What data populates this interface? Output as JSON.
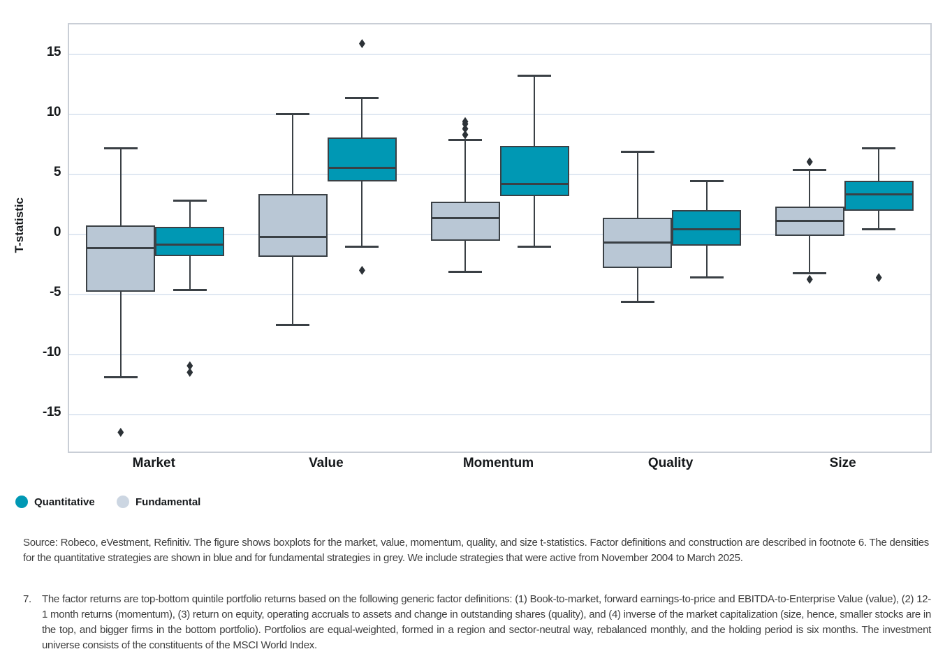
{
  "chart_data": {
    "type": "boxplot",
    "title": "",
    "ylabel": "T-statistic",
    "xlabel": "",
    "yticks": [
      15,
      10,
      5,
      0,
      -5,
      -10,
      -15
    ],
    "ylim": [
      -18.1,
      17.5
    ],
    "grid": "horizontal",
    "legend_position": "bottom-left",
    "categories": [
      "Market",
      "Value",
      "Momentum",
      "Quality",
      "Size"
    ],
    "legend": [
      {
        "name": "Quantitative",
        "color": "#0098b4"
      },
      {
        "name": "Fundamental",
        "color": "#ccd6e2"
      }
    ],
    "series": [
      {
        "name": "Fundamental",
        "color": "#b9c7d5",
        "boxes": [
          {
            "category": "Market",
            "whisker_low": -11.9,
            "q1": -4.8,
            "median": -1.15,
            "q3": 0.75,
            "whisker_high": 7.2,
            "outliers": [
              -16.5
            ]
          },
          {
            "category": "Value",
            "whisker_low": -7.55,
            "q1": -1.85,
            "median": -0.2,
            "q3": 3.35,
            "whisker_high": 10.05,
            "outliers": []
          },
          {
            "category": "Momentum",
            "whisker_low": -3.1,
            "q1": -0.55,
            "median": 1.35,
            "q3": 2.7,
            "whisker_high": 7.9,
            "outliers": [
              8.3,
              8.8,
              9.2,
              9.4
            ]
          },
          {
            "category": "Quality",
            "whisker_low": -5.65,
            "q1": -2.8,
            "median": -0.7,
            "q3": 1.4,
            "whisker_high": 6.9,
            "outliers": []
          },
          {
            "category": "Size",
            "whisker_low": -3.25,
            "q1": -0.1,
            "median": 1.15,
            "q3": 2.3,
            "whisker_high": 5.4,
            "outliers": [
              6.05,
              -3.75
            ]
          }
        ]
      },
      {
        "name": "Quantitative",
        "color": "#0098b4",
        "boxes": [
          {
            "category": "Market",
            "whisker_low": -4.65,
            "q1": -1.8,
            "median": -0.85,
            "q3": 0.65,
            "whisker_high": 2.8,
            "outliers": [
              -10.95,
              -11.5
            ]
          },
          {
            "category": "Value",
            "whisker_low": -1.0,
            "q1": 4.4,
            "median": 5.55,
            "q3": 8.1,
            "whisker_high": 11.35,
            "outliers": [
              15.9,
              -3.0
            ]
          },
          {
            "category": "Momentum",
            "whisker_low": -1.05,
            "q1": 3.2,
            "median": 4.2,
            "q3": 7.4,
            "whisker_high": 13.2,
            "outliers": []
          },
          {
            "category": "Quality",
            "whisker_low": -3.6,
            "q1": -0.95,
            "median": 0.45,
            "q3": 2.05,
            "whisker_high": 4.45,
            "outliers": []
          },
          {
            "category": "Size",
            "whisker_low": 0.4,
            "q1": 1.95,
            "median": 3.35,
            "q3": 4.45,
            "whisker_high": 7.2,
            "outliers": [
              -3.6
            ]
          }
        ]
      }
    ],
    "style_colors": {
      "stroke": "#3a4045",
      "gridline": "#e0e8f2",
      "plot_border": "#c9ced6",
      "outlier": "#2c3237"
    }
  },
  "footer": {
    "source_text": "Source: Robeco, eVestment, Refinitiv. The figure shows boxplots for the market, value, momentum, quality, and size t-statistics. Factor definitions and construction are described in footnote 6. The densities for the quantitative strategies are shown in blue and for fundamental strategies in grey. We include strategies that were active from November 2004 to March 2025.",
    "footnote_number": "7.",
    "footnote_text": "The factor returns are top-bottom quintile portfolio returns based on the following generic factor definitions: (1) Book-to-market, forward earnings-to-price and EBITDA-to-Enterprise Value (value), (2) 12-1 month returns (momentum), (3) return on equity, operating accruals to assets and change in outstanding shares (quality), and (4) inverse of the market capitalization (size, hence, smaller stocks are in the top, and bigger firms in the bottom portfolio). Portfolios are equal-weighted, formed in a region and sector-neutral way, rebalanced monthly, and the holding period is six months. The investment universe consists of the constituents of the MSCI World Index."
  }
}
